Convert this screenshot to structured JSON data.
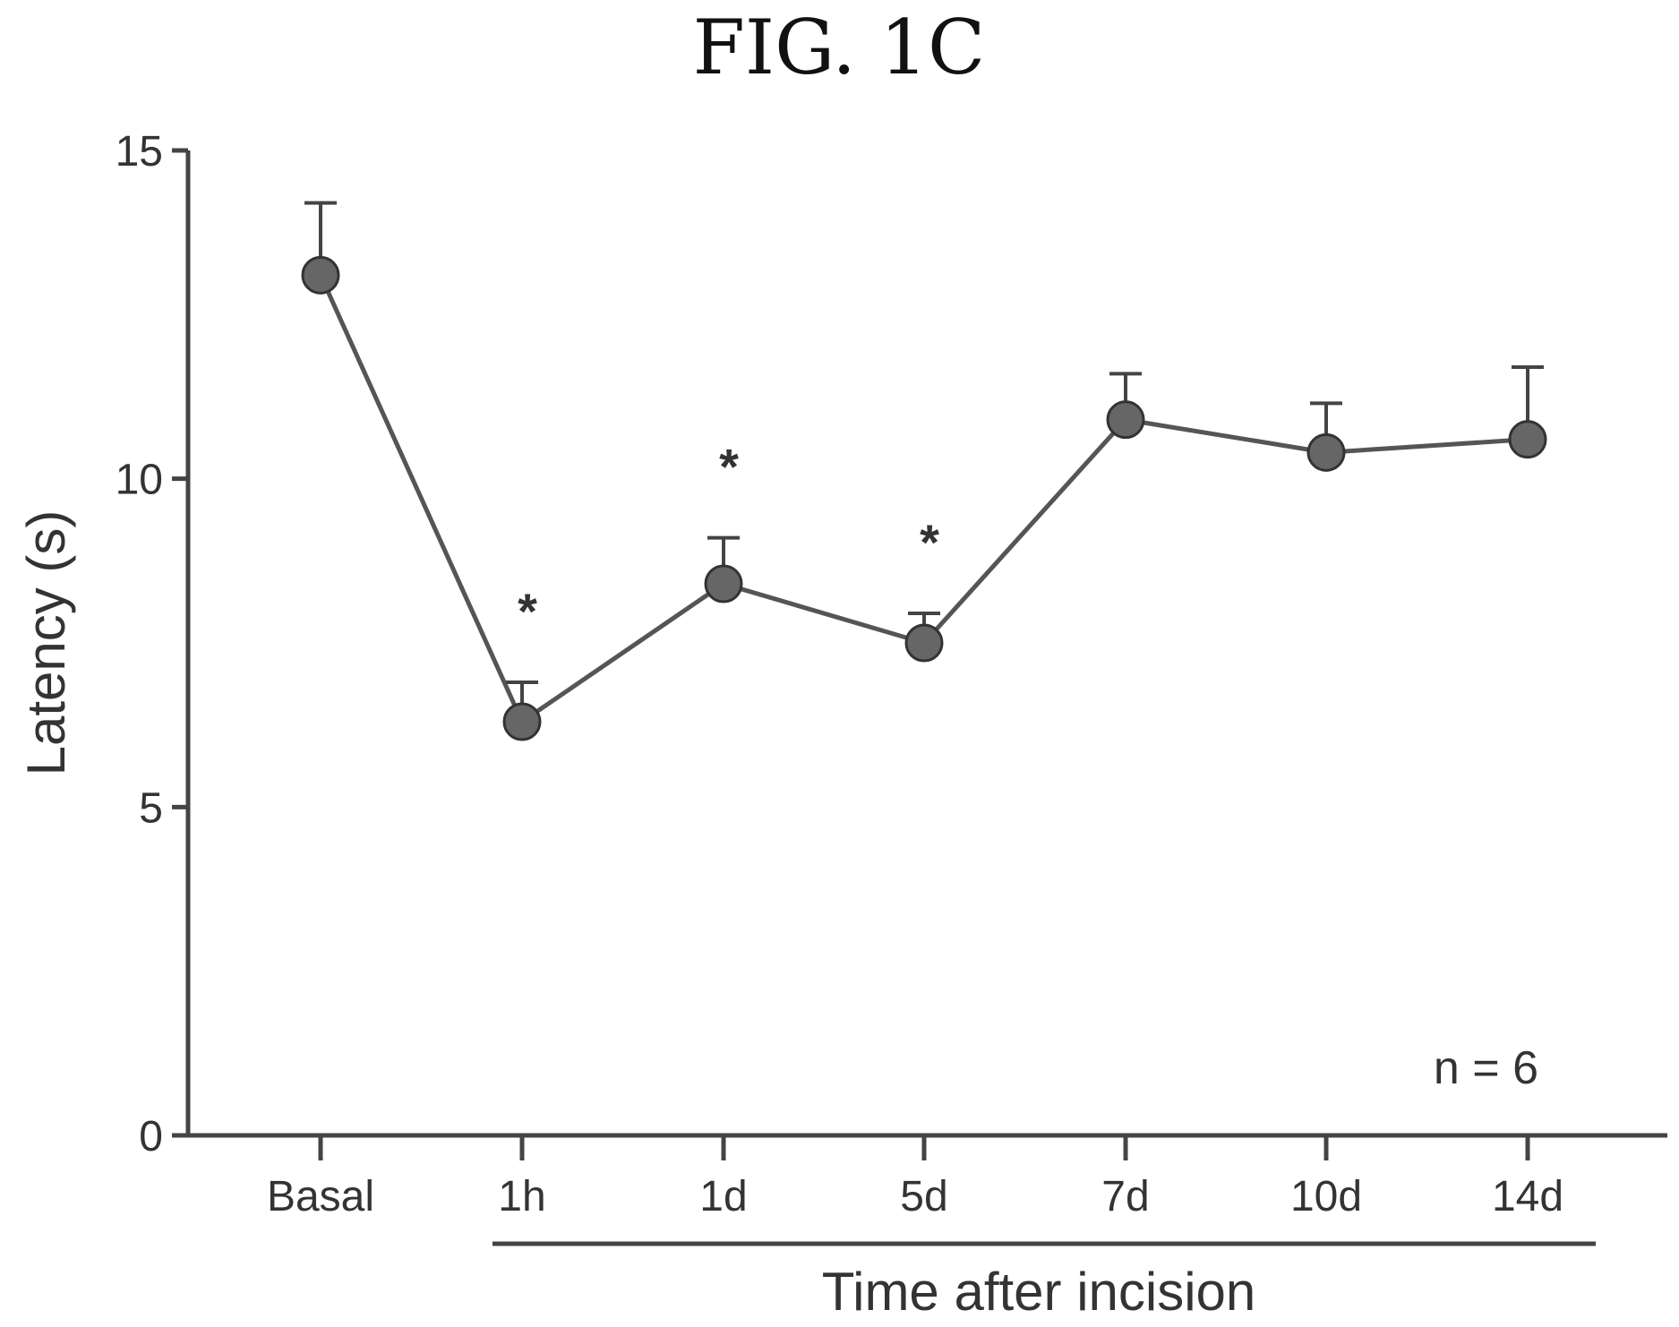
{
  "figure_title": "FIG. 1C",
  "chart_data": {
    "type": "line",
    "title": "FIG. 1C",
    "xlabel": "Time after incision",
    "ylabel": "Latency (s)",
    "categories": [
      "Basal",
      "1h",
      "1d",
      "5d",
      "7d",
      "10d",
      "14d"
    ],
    "series": [
      {
        "values": [
          13.1,
          6.3,
          8.4,
          7.5,
          10.9,
          10.4,
          10.6
        ],
        "error": [
          1.1,
          0.6,
          0.7,
          0.45,
          0.7,
          0.75,
          1.1
        ],
        "significant": [
          false,
          true,
          true,
          true,
          false,
          false,
          false
        ]
      }
    ],
    "significance_marker": "*",
    "ylim": [
      0,
      15
    ],
    "yticks": [
      0,
      5,
      10,
      15
    ],
    "annotation": "n = 6",
    "grid": false,
    "legend": "none",
    "colors": {
      "line": "#555555",
      "marker": "#666666",
      "axis": "#444444"
    }
  }
}
